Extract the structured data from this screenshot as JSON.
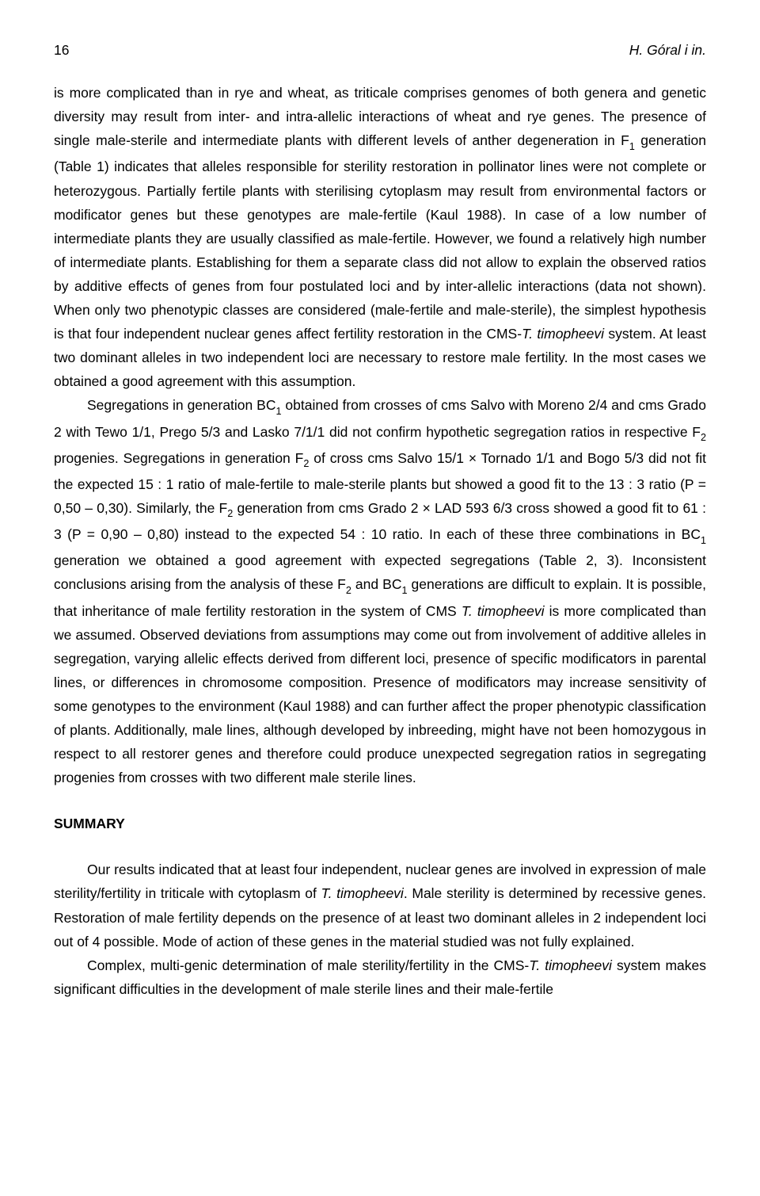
{
  "header": {
    "page_number": "16",
    "running_author": "H. Góral i in."
  },
  "paragraphs": {
    "p1_a": "is more complicated than in rye and wheat, as triticale comprises genomes of both genera and genetic diversity may result from inter- and intra-allelic interactions of wheat and rye genes. The presence of single male-sterile and intermediate plants with different levels of anther degeneration in F",
    "p1_sub1": "1",
    "p1_b": " generation (Table 1) indicates that alleles responsible for sterility restoration in pollinator lines were not complete or heterozygous. Partially fertile plants with sterilising cytoplasm may result from environmental factors or modificator genes but these genotypes are male-fertile (Kaul 1988). In case of a low number of intermediate plants they are usually classified as male-fertile. However, we found a relatively high number of intermediate plants. Establishing for them a separate class did not allow to explain the observed ratios by additive effects of genes from four postulated loci and by inter-allelic interactions (data not shown). When only two phenotypic classes are considered (male-fertile and male-sterile), the simplest hypothesis is that four independent nuclear genes affect fertility restoration in the CMS-",
    "p1_ital1": "T. timopheevi",
    "p1_c": " system. At least two dominant alleles in two independent loci are necessary to restore male fertility. In the most cases we obtained a good agreement with this assumption.",
    "p2_a": "Segregations in generation BC",
    "p2_sub1": "1",
    "p2_b": " obtained from crosses of cms Salvo with Moreno 2/4 and cms Grado 2 with Tewo 1/1, Prego 5/3 and Lasko 7/1/1 did not confirm hypothetic segregation ratios in respective F",
    "p2_sub2": "2",
    "p2_c": " progenies. Segregations in generation F",
    "p2_sub3": "2",
    "p2_d": " of cross cms Salvo 15/1 × Tornado 1/1 and Bogo 5/3 did not fit the expected 15 : 1 ratio of male-fertile to male-sterile plants but showed a good fit to the 13 : 3 ratio (P = 0,50 – 0,30). Similarly, the F",
    "p2_sub4": "2",
    "p2_e": " generation from cms Grado 2 × LAD 593 6/3 cross showed a good fit to 61 : 3 (P = 0,90 – 0,80) instead to the expected 54 : 10 ratio. In each of these three combinations in BC",
    "p2_sub5": "1",
    "p2_f": " generation we obtained a good agreement with expected segregations (Table 2, 3). Inconsistent conclusions arising from the analysis of these F",
    "p2_sub6": "2",
    "p2_g": " and BC",
    "p2_sub7": "1",
    "p2_h": " generations are difficult to explain. It is possible, that inheritance of male fertility restoration in the system of CMS ",
    "p2_ital1": "T. timopheevi",
    "p2_i": " is more complicated than we assumed. Observed deviations from assumptions may come out from involvement of additive alleles in segregation, varying allelic effects derived from different loci, presence of specific modificators in parental lines, or differences in chromosome composition. Presence of modificators may increase sensitivity of some genotypes to the environment (Kaul 1988) and can further affect the proper phenotypic classification of plants. Additionally, male lines, although developed by inbreeding, might have not been homozygous in respect to all restorer genes and therefore could produce unexpected segregation ratios in segregating progenies from crosses with two different male sterile lines.",
    "summary_heading": "SUMMARY",
    "p3_a": "Our results indicated that at least four independent, nuclear genes are involved in expression of male sterility/fertility in triticale with cytoplasm of ",
    "p3_ital1": "T. timopheevi",
    "p3_b": ". Male sterility is determined by recessive genes. Restoration of male fertility depends on the presence of at least two dominant alleles in 2 independent loci out of 4 possible. Mode of action of these genes in the material studied was not fully explained.",
    "p4_a": "Complex, multi-genic determination of male sterility/fertility in the CMS-",
    "p4_ital1": "T. timopheevi",
    "p4_b": " system makes significant difficulties in the development of male sterile lines and their male-fertile"
  }
}
